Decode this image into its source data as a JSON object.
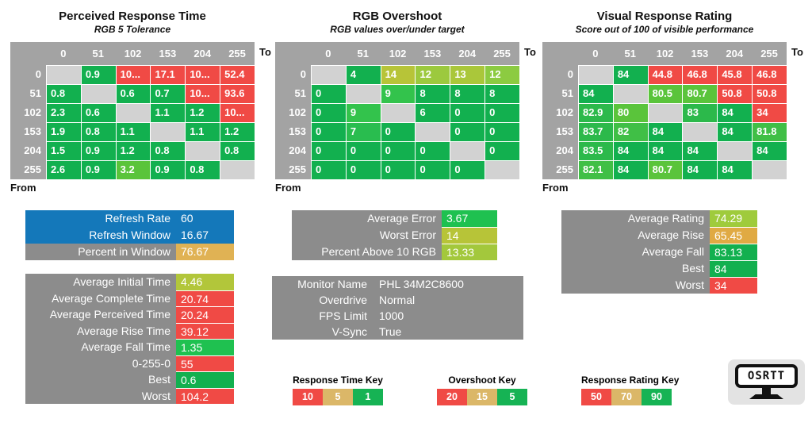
{
  "palette": {
    "headerGray": "#a3a3a3",
    "diag": "#d2d2d2",
    "sumGray": "#8c8c8c",
    "green": "#12b04f",
    "green2": "#2cb94b",
    "green3": "#40bf46",
    "lightGreen": "#5ac43b",
    "brightGreen": "#1fc150",
    "green9": "#33c34c",
    "green7": "#29bd4f",
    "yg12": "#9cc93e",
    "yg13": "#aac73a",
    "yg12b": "#8ccb41",
    "olive": "#b7c438",
    "oliveLight": "#b2c63a",
    "ygValue": "#a3c83c",
    "ygRating": "#9fcb3c",
    "red": "#f04a45",
    "blue": "#1478ba",
    "gold": "#e0b254",
    "goldDark": "#e0aa43",
    "keyTan": "#dbb768",
    "keyGreen": "#16b354"
  },
  "chart_data": [
    {
      "type": "heatmap",
      "title": "Perceived Response Time",
      "subtitle": "RGB 5 Tolerance",
      "to_label": "To",
      "from_label": "From",
      "columns": [
        "0",
        "51",
        "102",
        "153",
        "204",
        "255"
      ],
      "rows": [
        "0",
        "51",
        "102",
        "153",
        "204",
        "255"
      ],
      "cells": [
        [
          null,
          {
            "v": "0.9",
            "c": "green"
          },
          {
            "v": "10...",
            "c": "red"
          },
          {
            "v": "17.1",
            "c": "red"
          },
          {
            "v": "10...",
            "c": "red"
          },
          {
            "v": "52.4",
            "c": "red"
          }
        ],
        [
          {
            "v": "0.8",
            "c": "green"
          },
          null,
          {
            "v": "0.6",
            "c": "green"
          },
          {
            "v": "0.7",
            "c": "green"
          },
          {
            "v": "10...",
            "c": "red"
          },
          {
            "v": "93.6",
            "c": "red"
          }
        ],
        [
          {
            "v": "2.3",
            "c": "green"
          },
          {
            "v": "0.6",
            "c": "green"
          },
          null,
          {
            "v": "1.1",
            "c": "green"
          },
          {
            "v": "1.2",
            "c": "green"
          },
          {
            "v": "10...",
            "c": "red"
          }
        ],
        [
          {
            "v": "1.9",
            "c": "green"
          },
          {
            "v": "0.8",
            "c": "green"
          },
          {
            "v": "1.1",
            "c": "green"
          },
          null,
          {
            "v": "1.1",
            "c": "green"
          },
          {
            "v": "1.2",
            "c": "green"
          }
        ],
        [
          {
            "v": "1.5",
            "c": "green"
          },
          {
            "v": "0.9",
            "c": "green"
          },
          {
            "v": "1.2",
            "c": "green"
          },
          {
            "v": "0.8",
            "c": "green"
          },
          null,
          {
            "v": "0.8",
            "c": "green"
          }
        ],
        [
          {
            "v": "2.6",
            "c": "green"
          },
          {
            "v": "0.9",
            "c": "green"
          },
          {
            "v": "3.2",
            "c": "lightGreen"
          },
          {
            "v": "0.9",
            "c": "green"
          },
          {
            "v": "0.8",
            "c": "green"
          },
          null
        ]
      ]
    },
    {
      "type": "heatmap",
      "title": "RGB Overshoot",
      "subtitle": "RGB values over/under target",
      "to_label": "To",
      "from_label": "From",
      "columns": [
        "0",
        "51",
        "102",
        "153",
        "204",
        "255"
      ],
      "rows": [
        "0",
        "51",
        "102",
        "153",
        "204",
        "255"
      ],
      "cells": [
        [
          null,
          {
            "v": "4",
            "c": "green"
          },
          {
            "v": "14",
            "c": "olive"
          },
          {
            "v": "12",
            "c": "yg12"
          },
          {
            "v": "13",
            "c": "yg13"
          },
          {
            "v": "12",
            "c": "yg12b"
          }
        ],
        [
          {
            "v": "0",
            "c": "green"
          },
          null,
          {
            "v": "9",
            "c": "green9"
          },
          {
            "v": "8",
            "c": "green"
          },
          {
            "v": "8",
            "c": "green"
          },
          {
            "v": "8",
            "c": "green"
          }
        ],
        [
          {
            "v": "0",
            "c": "green"
          },
          {
            "v": "9",
            "c": "green9"
          },
          null,
          {
            "v": "6",
            "c": "green"
          },
          {
            "v": "0",
            "c": "green"
          },
          {
            "v": "0",
            "c": "green"
          }
        ],
        [
          {
            "v": "0",
            "c": "green"
          },
          {
            "v": "7",
            "c": "green7"
          },
          {
            "v": "0",
            "c": "green"
          },
          null,
          {
            "v": "0",
            "c": "green"
          },
          {
            "v": "0",
            "c": "green"
          }
        ],
        [
          {
            "v": "0",
            "c": "green"
          },
          {
            "v": "0",
            "c": "green"
          },
          {
            "v": "0",
            "c": "green"
          },
          {
            "v": "0",
            "c": "green"
          },
          null,
          {
            "v": "0",
            "c": "green"
          }
        ],
        [
          {
            "v": "0",
            "c": "green"
          },
          {
            "v": "0",
            "c": "green"
          },
          {
            "v": "0",
            "c": "green"
          },
          {
            "v": "0",
            "c": "green"
          },
          {
            "v": "0",
            "c": "green"
          },
          null
        ]
      ]
    },
    {
      "type": "heatmap",
      "title": "Visual Response Rating",
      "subtitle": "Score out of 100 of visible performance",
      "to_label": "To",
      "from_label": "From",
      "columns": [
        "0",
        "51",
        "102",
        "153",
        "204",
        "255"
      ],
      "rows": [
        "0",
        "51",
        "102",
        "153",
        "204",
        "255"
      ],
      "cells": [
        [
          null,
          {
            "v": "84",
            "c": "green"
          },
          {
            "v": "44.8",
            "c": "red"
          },
          {
            "v": "46.8",
            "c": "red"
          },
          {
            "v": "45.8",
            "c": "red"
          },
          {
            "v": "46.8",
            "c": "red"
          }
        ],
        [
          {
            "v": "84",
            "c": "green"
          },
          null,
          {
            "v": "80.5",
            "c": "lightGreen"
          },
          {
            "v": "80.7",
            "c": "lightGreen"
          },
          {
            "v": "50.8",
            "c": "red"
          },
          {
            "v": "50.8",
            "c": "red"
          }
        ],
        [
          {
            "v": "82.9",
            "c": "green2"
          },
          {
            "v": "80",
            "c": "lightGreen"
          },
          null,
          {
            "v": "83",
            "c": "green2"
          },
          {
            "v": "84",
            "c": "green"
          },
          {
            "v": "34",
            "c": "red"
          }
        ],
        [
          {
            "v": "83.7",
            "c": "green2"
          },
          {
            "v": "82",
            "c": "green3"
          },
          {
            "v": "84",
            "c": "green"
          },
          null,
          {
            "v": "84",
            "c": "green"
          },
          {
            "v": "81.8",
            "c": "green3"
          }
        ],
        [
          {
            "v": "83.5",
            "c": "green2"
          },
          {
            "v": "84",
            "c": "green"
          },
          {
            "v": "84",
            "c": "green"
          },
          {
            "v": "84",
            "c": "green"
          },
          null,
          {
            "v": "84",
            "c": "green"
          }
        ],
        [
          {
            "v": "82.1",
            "c": "green3"
          },
          {
            "v": "84",
            "c": "green"
          },
          {
            "v": "80.7",
            "c": "lightGreen"
          },
          {
            "v": "84",
            "c": "green"
          },
          {
            "v": "84",
            "c": "green"
          },
          null
        ]
      ]
    }
  ],
  "summaries": [
    {
      "id": "t-refresh",
      "rows": [
        {
          "label": "Refresh Rate",
          "value": "60",
          "labelBg": "blue",
          "valueBg": "blue"
        },
        {
          "label": "Refresh Window",
          "value": "16.67",
          "labelBg": "blue",
          "valueBg": "blue"
        },
        {
          "label": "Percent in Window",
          "value": "76.67",
          "labelBg": "sumGray",
          "valueBg": "gold"
        }
      ],
      "separators": false
    },
    {
      "id": "t-avg",
      "rows": [
        {
          "label": "Average Initial Time",
          "value": "4.46",
          "labelBg": "sumGray",
          "valueBg": "oliveLight"
        },
        {
          "label": "Average Complete Time",
          "value": "20.74",
          "labelBg": "sumGray",
          "valueBg": "red"
        },
        {
          "label": "Average Perceived Time",
          "value": "20.24",
          "labelBg": "sumGray",
          "valueBg": "red"
        },
        {
          "label": "Average Rise Time",
          "value": "39.12",
          "labelBg": "sumGray",
          "valueBg": "red"
        },
        {
          "label": "Average Fall Time",
          "value": "1.35",
          "labelBg": "sumGray",
          "valueBg": "brightGreen"
        },
        {
          "label": "0-255-0",
          "value": "55",
          "labelBg": "sumGray",
          "valueBg": "red"
        },
        {
          "label": "Best",
          "value": "0.6",
          "labelBg": "sumGray",
          "valueBg": "green"
        },
        {
          "label": "Worst",
          "value": "104.2",
          "labelBg": "sumGray",
          "valueBg": "red"
        }
      ],
      "separators": true
    },
    {
      "id": "t-error",
      "rows": [
        {
          "label": "Average Error",
          "value": "3.67",
          "labelBg": "sumGray",
          "valueBg": "brightGreen"
        },
        {
          "label": "Worst Error",
          "value": "14",
          "labelBg": "sumGray",
          "valueBg": "olive"
        },
        {
          "label": "Percent Above 10 RGB",
          "value": "13.33",
          "labelBg": "sumGray",
          "valueBg": "ygValue"
        }
      ],
      "separators": true
    },
    {
      "id": "t-monitor",
      "rows": [
        {
          "label": "Monitor Name",
          "value": "PHL 34M2C8600",
          "labelBg": "sumGray",
          "valueBg": "sumGray"
        },
        {
          "label": "Overdrive",
          "value": "Normal",
          "labelBg": "sumGray",
          "valueBg": "sumGray"
        },
        {
          "label": "FPS Limit",
          "value": "1000",
          "labelBg": "sumGray",
          "valueBg": "sumGray"
        },
        {
          "label": "V-Sync",
          "value": "True",
          "labelBg": "sumGray",
          "valueBg": "sumGray"
        }
      ],
      "separators": false
    },
    {
      "id": "t-rating",
      "rows": [
        {
          "label": "Average Rating",
          "value": "74.29",
          "labelBg": "sumGray",
          "valueBg": "ygRating"
        },
        {
          "label": "Average Rise",
          "value": "65.45",
          "labelBg": "sumGray",
          "valueBg": "goldDark"
        },
        {
          "label": "Average Fall",
          "value": "83.13",
          "labelBg": "sumGray",
          "valueBg": "green"
        },
        {
          "label": "Best",
          "value": "84",
          "labelBg": "sumGray",
          "valueBg": "green"
        },
        {
          "label": "Worst",
          "value": "34",
          "labelBg": "sumGray",
          "valueBg": "red"
        }
      ],
      "separators": true
    }
  ],
  "keys": [
    {
      "id": "k-time",
      "title": "Response Time Key",
      "swatches": [
        {
          "v": "10",
          "c": "red"
        },
        {
          "v": "5",
          "c": "keyTan"
        },
        {
          "v": "1",
          "c": "keyGreen"
        }
      ]
    },
    {
      "id": "k-shoot",
      "title": "Overshoot Key",
      "swatches": [
        {
          "v": "20",
          "c": "red"
        },
        {
          "v": "15",
          "c": "keyTan"
        },
        {
          "v": "5",
          "c": "keyGreen"
        }
      ]
    },
    {
      "id": "k-rating",
      "title": "Response Rating Key",
      "swatches": [
        {
          "v": "50",
          "c": "red"
        },
        {
          "v": "70",
          "c": "keyTan"
        },
        {
          "v": "90",
          "c": "keyGreen"
        }
      ]
    }
  ],
  "logo": {
    "text": "OSRTT"
  }
}
